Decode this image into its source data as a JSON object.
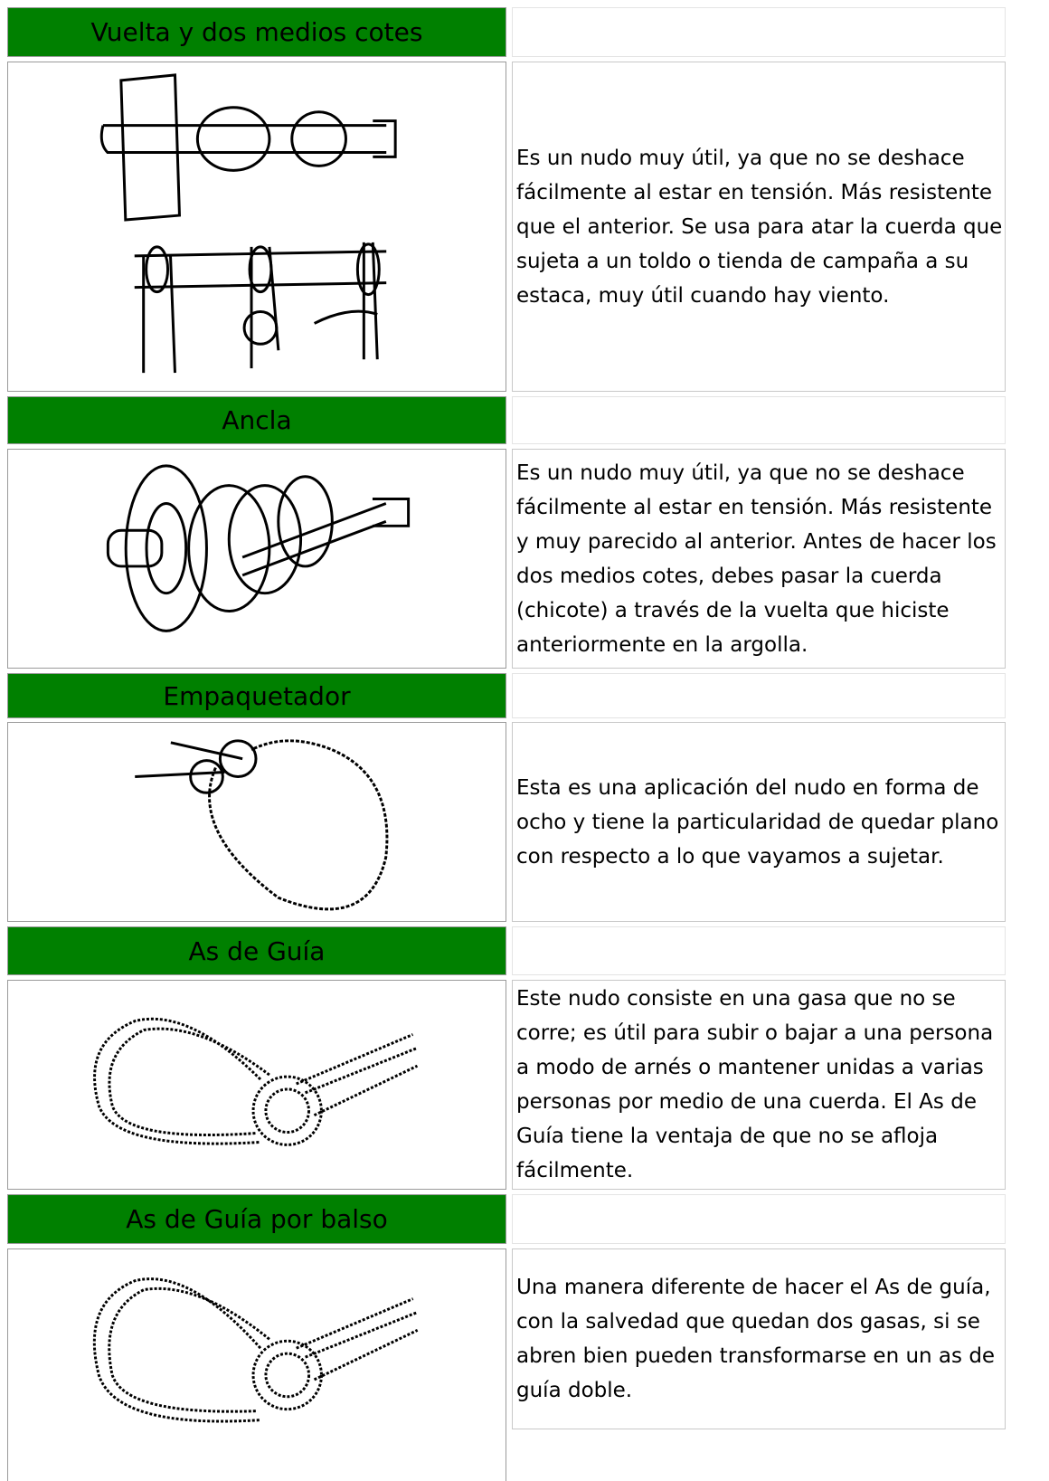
{
  "knots": [
    {
      "name": "Vuelta y dos medios cotes",
      "description": "Es un nudo muy útil, ya que no se deshace fácilmente al estar en tensión. Más resistente que el anterior. Se usa para atar la cuerda que sujeta a un toldo o tienda de campaña a su estaca, muy útil cuando hay viento."
    },
    {
      "name": "Ancla",
      "description": "Es un nudo muy útil, ya que no se deshace fácilmente al estar en tensión. Más resistente y muy parecido al anterior. Antes de hacer los dos medios cotes, debes pasar la cuerda (chicote) a través de la vuelta que hiciste anteriormente en la argolla."
    },
    {
      "name": "Empaquetador",
      "description": "Esta es una aplicación del nudo en forma de ocho y tiene la particularidad de quedar plano con respecto a lo que vayamos a sujetar."
    },
    {
      "name": "As de Guía",
      "description": "Este nudo consiste en una gasa que no se corre; es útil para subir o bajar a una persona a modo de arnés o mantener unidas a varias personas por medio de una cuerda. El As de Guía tiene la ventaja de que no se afloja fácilmente."
    },
    {
      "name": "As de Guía por balso",
      "description": "Una manera diferente de hacer el As de guía, con la salvedad que quedan dos gasas, si se abren bien pueden transformarse en un as de guía doble."
    }
  ]
}
